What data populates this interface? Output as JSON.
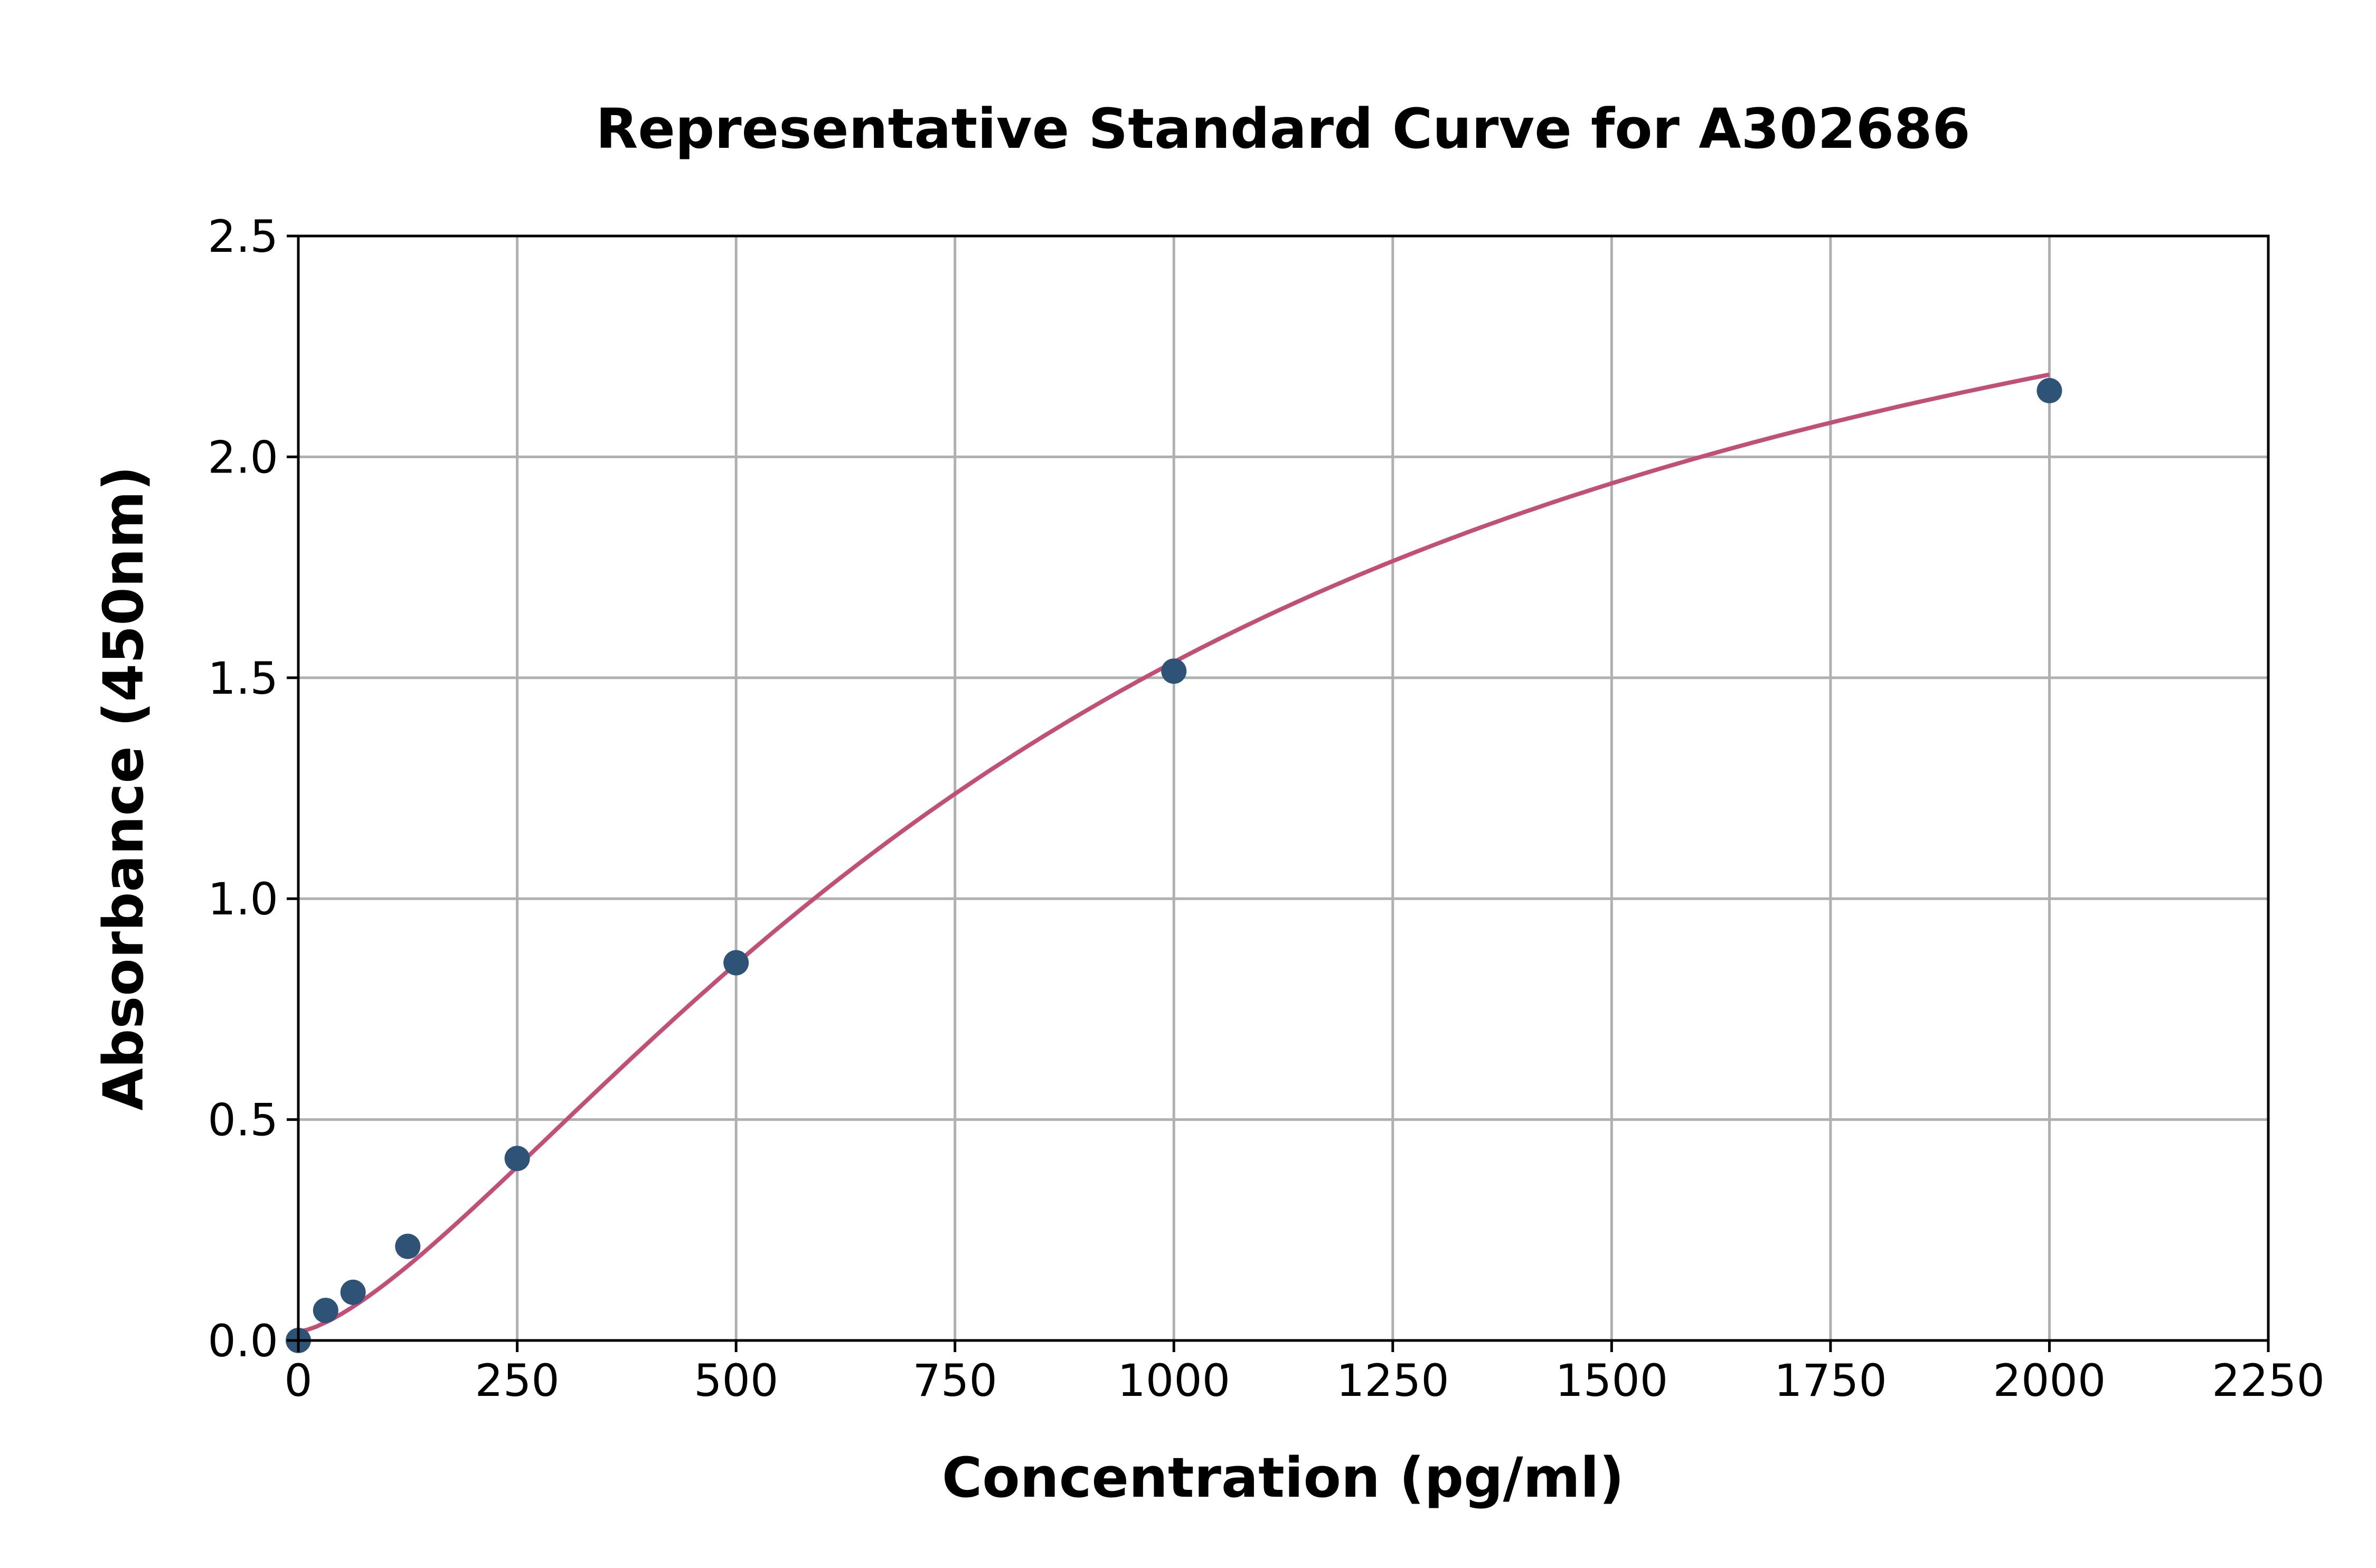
{
  "chart_data": {
    "type": "scatter",
    "title": "Representative Standard Curve for A302686",
    "xlabel": "Concentration (pg/ml)",
    "ylabel": "Absorbance (450nm)",
    "xlim": [
      0,
      2250
    ],
    "ylim": [
      0,
      2.5
    ],
    "xticks": [
      "0",
      "250",
      "500",
      "750",
      "1000",
      "1250",
      "1500",
      "1750",
      "2000",
      "2250"
    ],
    "yticks": [
      "0.0",
      "0.5",
      "1.0",
      "1.5",
      "2.0",
      "2.5"
    ],
    "grid": true,
    "points": {
      "x": [
        0,
        31.25,
        62.5,
        125,
        250,
        500,
        1000,
        2000
      ],
      "y": [
        0.0,
        0.068,
        0.109,
        0.213,
        0.412,
        0.855,
        1.515,
        2.15
      ]
    },
    "fit_curve": "4-parameter logistic",
    "colors": {
      "points": "#2f5377",
      "curve": "#c05077",
      "grid": "#b0b0b0"
    }
  }
}
